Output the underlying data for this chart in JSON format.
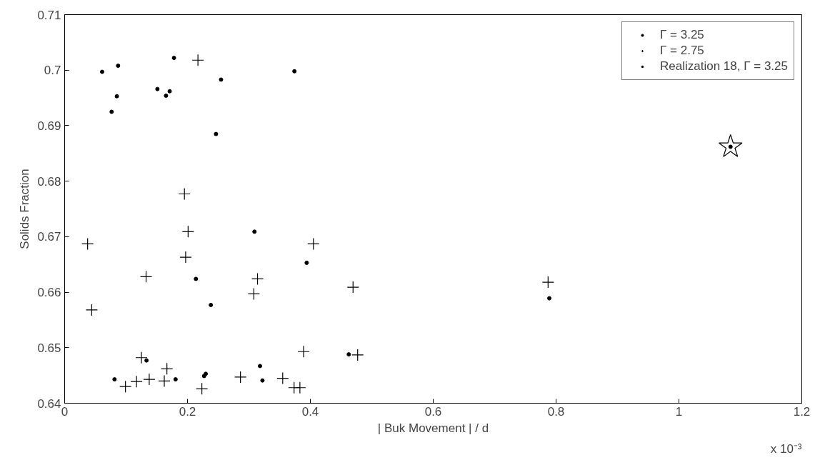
{
  "chart_data": {
    "type": "scatter",
    "xlabel": "| Buk Movement | / d",
    "ylabel": "Solids Fraction",
    "annotations": [
      "x 10⁻³"
    ],
    "xlim": [
      0,
      1.2
    ],
    "xticks": [
      0,
      0.2,
      0.4,
      0.6,
      0.8,
      1,
      1.2
    ],
    "ylim": [
      0.64,
      0.71
    ],
    "yticks": [
      0.64,
      0.65,
      0.66,
      0.67,
      0.68,
      0.69,
      0.7,
      0.71
    ],
    "grid": false,
    "legend": "top right",
    "series": [
      {
        "name": "Γ = 3.25",
        "color": "#000000",
        "marker": "circle",
        "x": [
          0.061,
          0.087,
          0.085,
          0.0765,
          0.151,
          0.165,
          0.171,
          0.2546,
          0.2464,
          0.374,
          0.178,
          0.789,
          1.084,
          0.309,
          0.394,
          0.2137,
          0.238,
          0.4625,
          0.1333,
          0.0812,
          0.1806,
          0.227,
          0.2297,
          0.318,
          0.322
        ],
        "values": [
          0.6997,
          0.7008,
          0.6953,
          0.6925,
          0.6966,
          0.6954,
          0.6962,
          0.6983,
          0.6885,
          0.6998,
          0.7022,
          0.6589,
          0.6862,
          0.6709,
          0.6653,
          0.6624,
          0.6577,
          0.6488,
          0.6477,
          0.6443,
          0.6443,
          0.6449,
          0.6453,
          0.6467,
          0.6441
        ]
      },
      {
        "name": "Γ = 2.75",
        "color": "#000000",
        "marker": "cross",
        "x": [
          0.217,
          0.787,
          0.0374,
          0.201,
          0.197,
          0.1326,
          0.405,
          0.314,
          0.308,
          0.0441,
          0.195,
          0.4695,
          0.389,
          0.477,
          0.125,
          0.099,
          0.117,
          0.1377,
          0.1665,
          0.1622,
          0.2234,
          0.2862,
          0.355,
          0.3735,
          0.383
        ],
        "values": [
          0.7018,
          0.6618,
          0.6687,
          0.6709,
          0.6663,
          0.6628,
          0.6687,
          0.6624,
          0.6597,
          0.6568,
          0.6777,
          0.6609,
          0.6493,
          0.6487,
          0.6482,
          0.643,
          0.6439,
          0.6443,
          0.6462,
          0.644,
          0.6426,
          0.6447,
          0.6445,
          0.6428,
          0.6428
        ]
      },
      {
        "name": "Realization 18, Γ = 3.25",
        "color": "#000000",
        "marker": "star",
        "x": [
          1.084
        ],
        "values": [
          0.6862
        ]
      }
    ]
  }
}
